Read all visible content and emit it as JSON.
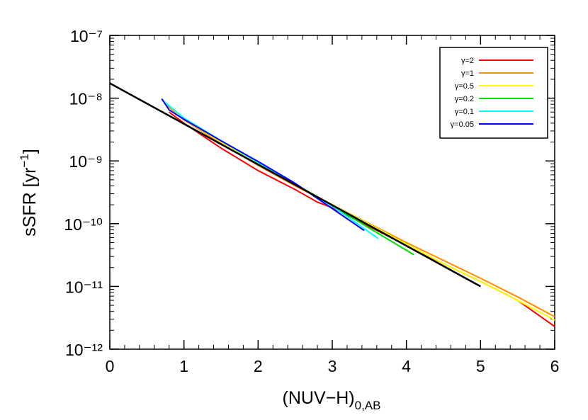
{
  "chart_data": {
    "type": "line",
    "x_label": {
      "main": "(NUV−H)",
      "sub": "0,AB"
    },
    "y_label": {
      "main": "sSFR [yr",
      "sup": "−1",
      "end": "]"
    },
    "xlim": [
      0,
      6
    ],
    "xticks": [
      0,
      1,
      2,
      3,
      4,
      5,
      6
    ],
    "ylim": [
      1e-12,
      1e-07
    ],
    "log_y": true,
    "yticks": [
      {
        "value": 1e-12,
        "label": "10⁻¹²"
      },
      {
        "value": 1e-11,
        "label": "10⁻¹¹"
      },
      {
        "value": 1e-10,
        "label": "10⁻¹⁰"
      },
      {
        "value": 1e-09,
        "label": "10⁻⁹"
      },
      {
        "value": 1e-08,
        "label": "10⁻⁸"
      },
      {
        "value": 1e-07,
        "label": "10⁻⁷"
      }
    ],
    "legend": "upper right",
    "series": [
      {
        "name": "γ=2",
        "color": "#ff0000",
        "x": [
          0.8,
          1.0,
          1.5,
          2.0,
          2.5,
          2.8,
          3.0,
          3.5,
          4.0,
          4.5,
          5.0,
          5.5,
          6.0
        ],
        "values": [
          6e-09,
          4e-09,
          1.6e-09,
          7e-10,
          3.5e-10,
          2.2e-10,
          1.8e-10,
          9e-11,
          4.5e-11,
          2.3e-11,
          1.2e-11,
          6e-12,
          2.3e-12
        ]
      },
      {
        "name": "γ=1",
        "color": "#ff8c00",
        "x": [
          0.75,
          1.0,
          1.5,
          2.0,
          2.5,
          3.0,
          3.5,
          4.0,
          4.5,
          5.0,
          5.5,
          6.0
        ],
        "values": [
          8e-09,
          4.5e-09,
          1.9e-09,
          8.5e-10,
          4e-10,
          2e-10,
          1e-10,
          5e-11,
          2.6e-11,
          1.35e-11,
          6.8e-12,
          3.3e-12
        ]
      },
      {
        "name": "γ=0.5",
        "color": "#ffff00",
        "x": [
          0.75,
          1.0,
          1.5,
          2.0,
          2.5,
          3.0,
          3.5,
          4.0,
          4.5,
          5.0,
          5.5,
          6.0
        ],
        "values": [
          8.5e-09,
          4.6e-09,
          2e-09,
          9e-10,
          4.2e-10,
          2e-10,
          9.8e-11,
          4.7e-11,
          2.3e-11,
          1.2e-11,
          6e-12,
          2.9e-12
        ]
      },
      {
        "name": "γ=0.2",
        "color": "#00dd00",
        "x": [
          0.72,
          1.0,
          1.5,
          2.0,
          2.5,
          3.0,
          3.5,
          4.1
        ],
        "values": [
          9e-09,
          4.8e-09,
          2.1e-09,
          9.5e-10,
          4.3e-10,
          1.95e-10,
          8.5e-11,
          3.2e-11
        ]
      },
      {
        "name": "γ=0.1",
        "color": "#00ffff",
        "x": [
          0.7,
          1.0,
          1.5,
          2.0,
          2.5,
          3.0,
          3.62
        ],
        "values": [
          9.5e-09,
          4.8e-09,
          2.1e-09,
          9.5e-10,
          4.3e-10,
          1.9e-10,
          5.8e-11
        ]
      },
      {
        "name": "γ=0.05",
        "color": "#0000ff",
        "x": [
          0.7,
          0.8,
          1.0,
          1.5,
          2.0,
          2.5,
          2.9,
          3.2,
          3.43
        ],
        "values": [
          9.8e-09,
          6.5e-09,
          4.6e-09,
          2.1e-09,
          9.8e-10,
          4.4e-10,
          2.1e-10,
          1.2e-10,
          7.8e-11
        ]
      }
    ],
    "fit": {
      "color": "#000000",
      "x": [
        0,
        5
      ],
      "values": [
        1.73e-08,
        1e-11
      ]
    }
  }
}
